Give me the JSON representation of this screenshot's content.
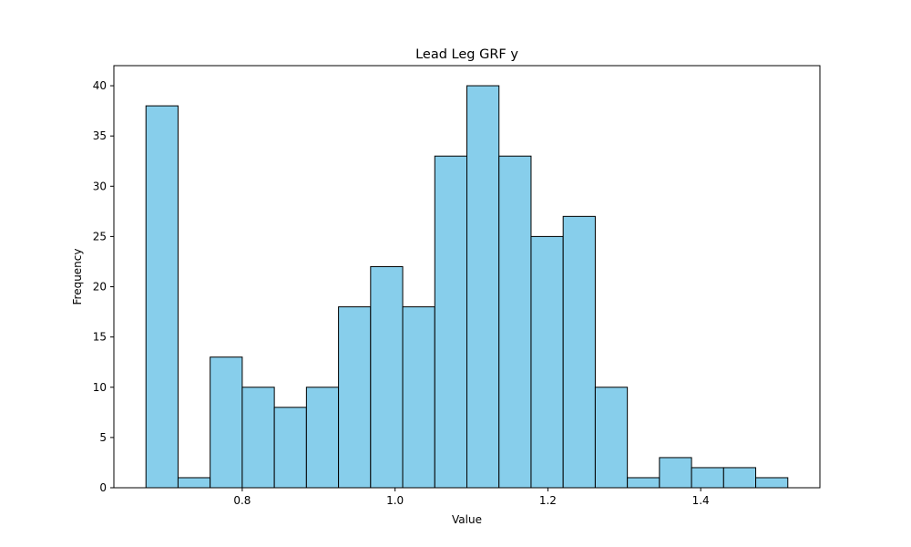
{
  "chart_data": {
    "type": "bar",
    "title": "Lead Leg GRF y",
    "xlabel": "Value",
    "ylabel": "Frequency",
    "bin_edges": [
      0.674,
      0.716,
      0.758,
      0.8,
      0.842,
      0.884,
      0.926,
      0.968,
      1.01,
      1.052,
      1.094,
      1.136,
      1.178,
      1.22,
      1.262,
      1.304,
      1.346,
      1.388,
      1.43,
      1.472,
      1.514
    ],
    "values": [
      38,
      1,
      13,
      10,
      8,
      10,
      18,
      22,
      18,
      33,
      40,
      33,
      25,
      27,
      10,
      1,
      3,
      2,
      2,
      1
    ],
    "xlim": [
      0.632,
      1.556
    ],
    "ylim": [
      0,
      42
    ],
    "xticks": [
      0.8,
      1.0,
      1.2,
      1.4
    ],
    "xtick_labels": [
      "0.8",
      "1.0",
      "1.2",
      "1.4"
    ],
    "yticks": [
      0,
      5,
      10,
      15,
      20,
      25,
      30,
      35,
      40
    ],
    "ytick_labels": [
      "0",
      "5",
      "10",
      "15",
      "20",
      "25",
      "30",
      "35",
      "40"
    ],
    "bar_color": "#87ceeb",
    "edge_color": "#000000",
    "grid": false,
    "legend": "none"
  }
}
